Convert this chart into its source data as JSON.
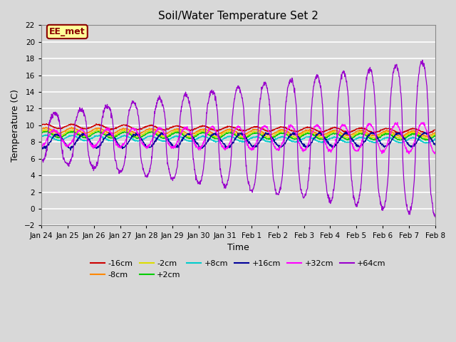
{
  "title": "Soil/Water Temperature Set 2",
  "xlabel": "Time",
  "ylabel": "Temperature (C)",
  "ylim": [
    -2,
    22
  ],
  "yticks": [
    -2,
    0,
    2,
    4,
    6,
    8,
    10,
    12,
    14,
    16,
    18,
    20,
    22
  ],
  "background_color": "#d8d8d8",
  "plot_bg_color": "#d8d8d8",
  "annotation_text": "EE_met",
  "annotation_box_color": "#ffff99",
  "annotation_border_color": "#8b0000",
  "series": [
    {
      "label": "-16cm",
      "color": "#cc0000",
      "base": 9.9,
      "amplitude": 0.25,
      "trend_start": 9.9,
      "trend_end": 9.3
    },
    {
      "label": "-8cm",
      "color": "#ff8800",
      "base": 9.4,
      "amplitude": 0.3,
      "trend_start": 9.4,
      "trend_end": 9.0
    },
    {
      "label": "-2cm",
      "color": "#dddd00",
      "base": 9.1,
      "amplitude": 0.35,
      "trend_start": 9.1,
      "trend_end": 8.8
    },
    {
      "label": "+2cm",
      "color": "#00cc00",
      "base": 8.9,
      "amplitude": 0.35,
      "trend_start": 8.9,
      "trend_end": 8.6
    },
    {
      "label": "+8cm",
      "color": "#00cccc",
      "base": 8.5,
      "amplitude": 0.3,
      "trend_start": 8.5,
      "trend_end": 8.2
    },
    {
      "label": "+16cm",
      "color": "#000099",
      "base": 8.1,
      "amplitude": 0.8,
      "trend_start": 8.1,
      "trend_end": 8.3
    },
    {
      "label": "+32cm",
      "color": "#ff00ff",
      "base": 8.5,
      "amplitude": 1.8,
      "trend_start": 8.5,
      "trend_end": 8.5
    },
    {
      "label": "+64cm",
      "color": "#9900cc",
      "base": 8.5,
      "amplitude": 5.5,
      "trend_start": 8.5,
      "trend_end": 8.5
    }
  ],
  "n_points": 1500,
  "x_start": 0,
  "x_end": 15,
  "xtick_labels": [
    "Jan 24",
    "Jan 25",
    "Jan 26",
    "Jan 27",
    "Jan 28",
    "Jan 29",
    "Jan 30",
    "Jan 31",
    "Feb 1",
    "Feb 2",
    "Feb 3",
    "Feb 4",
    "Feb 5",
    "Feb 6",
    "Feb 7",
    "Feb 8"
  ],
  "xtick_positions": [
    0,
    1,
    2,
    3,
    4,
    5,
    6,
    7,
    8,
    9,
    10,
    11,
    12,
    13,
    14,
    15
  ]
}
